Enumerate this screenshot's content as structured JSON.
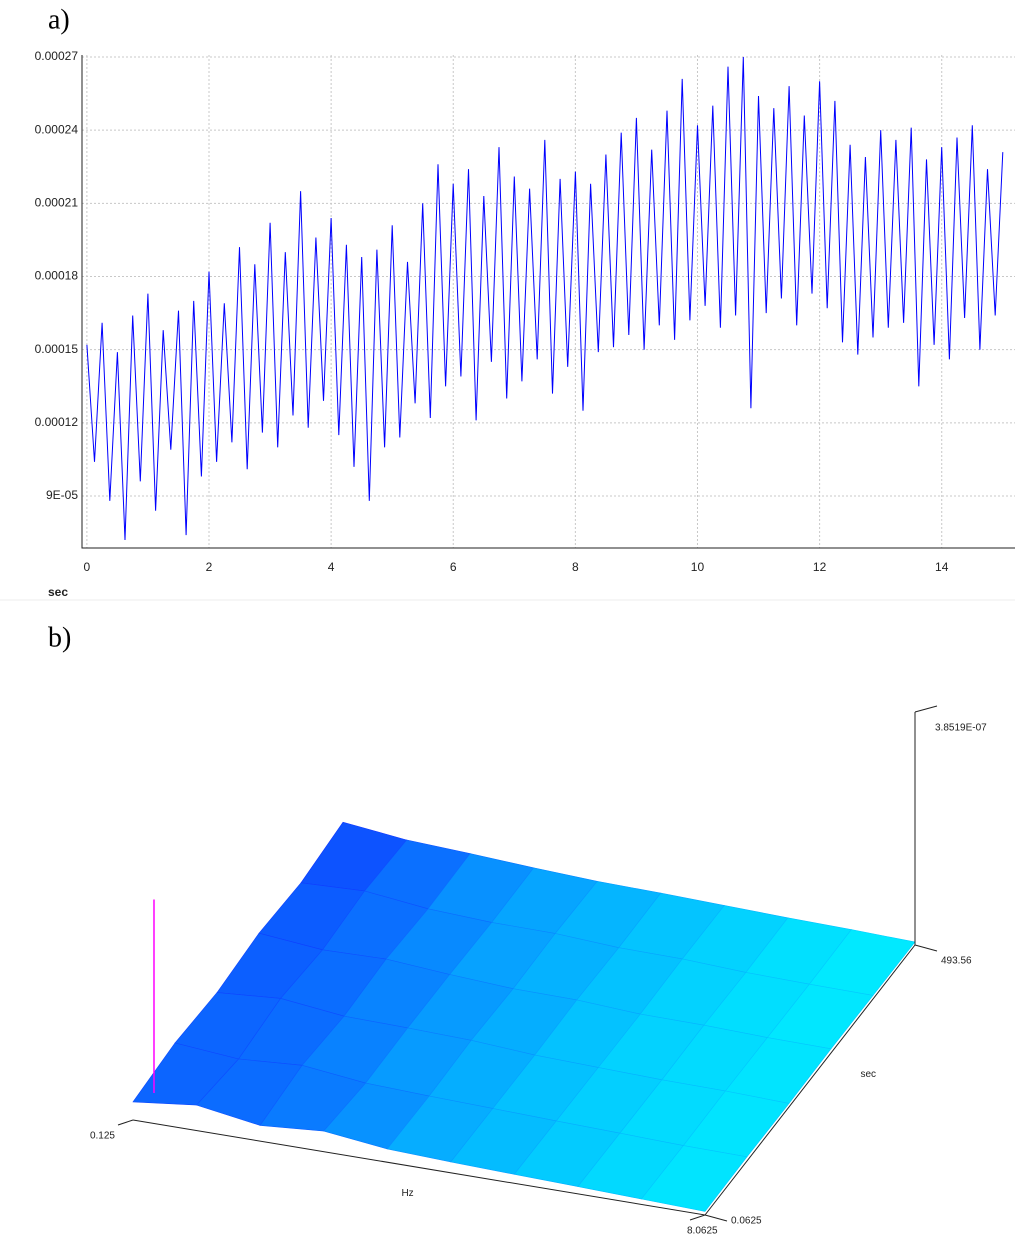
{
  "panel_labels": [
    "a)",
    "b)"
  ],
  "chart_data": [
    {
      "type": "line",
      "xlabel": "sec",
      "color": "#0000ff",
      "grid": true,
      "xlim": [
        -0.08,
        15.2
      ],
      "ylim": [
        6.87e-05,
        0.0002708
      ],
      "xticks": [
        0,
        2,
        4,
        6,
        8,
        10,
        12,
        14
      ],
      "yticks": [
        {
          "value": 9e-05,
          "label": "9E-05"
        },
        0.00012,
        0.00015,
        0.00018,
        0.00021,
        0.00024,
        0.00027
      ],
      "x": [
        0,
        0.125,
        0.25,
        0.375,
        0.5,
        0.625,
        0.75,
        0.875,
        1,
        1.125,
        1.25,
        1.375,
        1.5,
        1.625,
        1.75,
        1.875,
        2,
        2.125,
        2.25,
        2.375,
        2.5,
        2.625,
        2.75,
        2.875,
        3,
        3.125,
        3.25,
        3.375,
        3.5,
        3.625,
        3.75,
        3.875,
        4,
        4.125,
        4.25,
        4.375,
        4.5,
        4.625,
        4.75,
        4.875,
        5,
        5.125,
        5.25,
        5.375,
        5.5,
        5.625,
        5.75,
        5.875,
        6,
        6.125,
        6.25,
        6.375,
        6.5,
        6.625,
        6.75,
        6.875,
        7,
        7.125,
        7.25,
        7.375,
        7.5,
        7.625,
        7.75,
        7.875,
        8,
        8.125,
        8.25,
        8.375,
        8.5,
        8.625,
        8.75,
        8.875,
        9,
        9.125,
        9.25,
        9.375,
        9.5,
        9.625,
        9.75,
        9.875,
        10,
        10.125,
        10.25,
        10.375,
        10.5,
        10.625,
        10.75,
        10.875,
        11,
        11.125,
        11.25,
        11.375,
        11.5,
        11.625,
        11.75,
        11.875,
        12,
        12.125,
        12.25,
        12.375,
        12.5,
        12.625,
        12.75,
        12.875,
        13,
        13.125,
        13.25,
        13.375,
        13.5,
        13.625,
        13.75,
        13.875,
        14,
        14.125,
        14.25,
        14.375,
        14.5,
        14.625,
        14.75,
        14.875,
        15
      ],
      "values": [
        0.000152,
        0.000104,
        0.000161,
        8.8e-05,
        0.000149,
        7.2e-05,
        0.000164,
        9.6e-05,
        0.000173,
        8.4e-05,
        0.000158,
        0.000109,
        0.000166,
        7.4e-05,
        0.00017,
        9.8e-05,
        0.000182,
        0.000104,
        0.000169,
        0.000112,
        0.000192,
        0.000101,
        0.000185,
        0.000116,
        0.000202,
        0.00011,
        0.00019,
        0.000123,
        0.000215,
        0.000118,
        0.000196,
        0.000129,
        0.000204,
        0.000115,
        0.000193,
        0.000102,
        0.000188,
        8.8e-05,
        0.000191,
        0.00011,
        0.000201,
        0.000114,
        0.000186,
        0.000128,
        0.00021,
        0.000122,
        0.000226,
        0.000135,
        0.000218,
        0.000139,
        0.000224,
        0.000121,
        0.000213,
        0.000145,
        0.000233,
        0.00013,
        0.000221,
        0.000137,
        0.000216,
        0.000146,
        0.000236,
        0.000132,
        0.00022,
        0.000143,
        0.000223,
        0.000125,
        0.000218,
        0.000149,
        0.00023,
        0.000151,
        0.000239,
        0.000156,
        0.000245,
        0.00015,
        0.000232,
        0.00016,
        0.000248,
        0.000154,
        0.000261,
        0.000162,
        0.000242,
        0.000168,
        0.00025,
        0.000159,
        0.000266,
        0.000164,
        0.00027,
        0.000126,
        0.000254,
        0.000165,
        0.000249,
        0.000171,
        0.000258,
        0.00016,
        0.000246,
        0.000173,
        0.00026,
        0.000167,
        0.000252,
        0.000153,
        0.000234,
        0.000148,
        0.000229,
        0.000155,
        0.00024,
        0.000159,
        0.000236,
        0.000161,
        0.000241,
        0.000135,
        0.000228,
        0.000152,
        0.000233,
        0.000146,
        0.000237,
        0.000163,
        0.000242,
        0.00015,
        0.000224,
        0.000164,
        0.000231
      ]
    },
    {
      "type": "surface",
      "xlabel": "Hz",
      "ylabel": "sec",
      "xlim": [
        0.125,
        8.0625
      ],
      "ylim": [
        0.0625,
        493.56
      ],
      "zlim": [
        0,
        3.8519e-07
      ],
      "xticks": [
        0.125,
        8.0625
      ],
      "yticks": [
        0.0625,
        493.56
      ],
      "zticks": [
        {
          "value": 3.8519e-07,
          "label": "3.8519E-07"
        }
      ],
      "colormap": [
        "#00f0ff",
        "#1030ff"
      ],
      "z": [
        [
          3e-08,
          4.2e-08,
          2.6e-08,
          3.4e-08,
          2.2e-08,
          1.8e-08,
          1.5e-08,
          1.2e-08,
          9e-09,
          6e-09
        ],
        [
          3.8e-08,
          2.9e-08,
          3.6e-08,
          2.4e-08,
          2e-08,
          1.7e-08,
          1.4e-08,
          1.1e-08,
          8e-09,
          7e-09
        ],
        [
          3.2e-08,
          4e-08,
          2.8e-08,
          2.6e-08,
          2.3e-08,
          1.6e-08,
          1.3e-08,
          1e-08,
          9e-09,
          6e-09
        ],
        [
          4.1e-08,
          3.1e-08,
          3.3e-08,
          2.5e-08,
          1.9e-08,
          1.8e-08,
          1.2e-08,
          1.1e-08,
          8e-09,
          7e-09
        ],
        [
          3.5e-08,
          3.9e-08,
          2.7e-08,
          2.2e-08,
          2.1e-08,
          1.5e-08,
          1.4e-08,
          9e-09,
          7e-09,
          6e-09
        ],
        [
          4.6e-08,
          3.4e-08,
          2.9e-08,
          2.3e-08,
          1.8e-08,
          1.6e-08,
          1.3e-08,
          1e-08,
          8e-09,
          5e-09
        ]
      ],
      "peak": {
        "x": 0.125,
        "y": 49.4,
        "z": 3.2e-07,
        "color": "#ff00ff"
      }
    }
  ]
}
